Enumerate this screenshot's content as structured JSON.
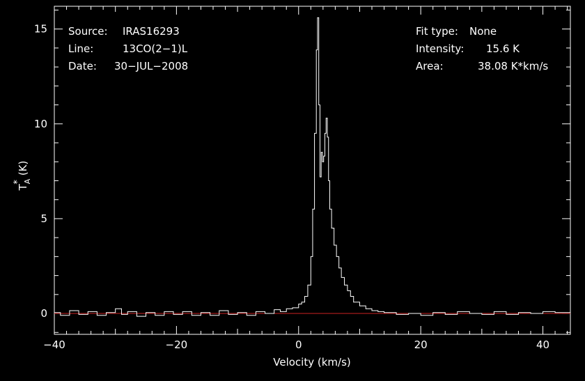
{
  "chart_data": {
    "type": "line",
    "xlabel": "Velocity (km/s)",
    "ylabel": {
      "main": "T",
      "superscript": "*",
      "subscript": "A",
      "unit": "(K)"
    },
    "xlim": [
      -40,
      44.5
    ],
    "ylim": [
      -1.1,
      16.2
    ],
    "xticks": [
      -40,
      -20,
      0,
      20,
      40
    ],
    "xtick_labels": [
      "−40",
      "−20",
      "0",
      "20",
      "40"
    ],
    "yticks": [
      0,
      5,
      10,
      15
    ],
    "ytick_labels": [
      "0",
      "5",
      "10",
      "15"
    ],
    "grid": false,
    "baseline": {
      "y": 0,
      "color": "#cc2222"
    },
    "colors": {
      "background": "#000000",
      "axes": "#ffffff",
      "spectrum": "#ffffff",
      "baseline": "#cc2222"
    },
    "series": [
      {
        "style": "step",
        "x": [
          -39,
          -37.5,
          -36,
          -34.5,
          -33,
          -31.5,
          -30,
          -29,
          -28,
          -26.5,
          -25,
          -23.5,
          -22,
          -20.5,
          -19,
          -17.5,
          -16,
          -14.5,
          -13,
          -11.5,
          -10,
          -8.5,
          -7,
          -5.5,
          -4,
          -3,
          -2,
          -1,
          0,
          0.5,
          1,
          1.5,
          2,
          2.3,
          2.6,
          2.9,
          3.1,
          3.3,
          3.5,
          3.7,
          3.9,
          4.1,
          4.3,
          4.5,
          4.7,
          4.9,
          5.1,
          5.4,
          5.8,
          6.2,
          6.6,
          7.0,
          7.5,
          8.0,
          8.5,
          9.0,
          10,
          11,
          12,
          13,
          14,
          16,
          18,
          20,
          22,
          24,
          26,
          28,
          30,
          32,
          34,
          36,
          38,
          40,
          42,
          44
        ],
        "y": [
          0.05,
          -0.1,
          0.15,
          -0.05,
          0.1,
          -0.1,
          0.05,
          0.25,
          -0.05,
          0.1,
          -0.15,
          0.05,
          -0.1,
          0.1,
          -0.05,
          0.1,
          -0.1,
          0.05,
          -0.1,
          0.15,
          -0.05,
          0.05,
          -0.1,
          0.1,
          0.0,
          0.2,
          0.1,
          0.25,
          0.3,
          0.5,
          0.6,
          0.9,
          1.5,
          3.0,
          5.5,
          9.5,
          13.9,
          15.6,
          11.0,
          7.2,
          8.5,
          8.0,
          8.3,
          9.5,
          10.3,
          9.3,
          7.0,
          5.5,
          4.5,
          3.6,
          3.0,
          2.4,
          1.9,
          1.5,
          1.2,
          0.9,
          0.6,
          0.4,
          0.25,
          0.15,
          0.1,
          0.05,
          -0.05,
          0.0,
          -0.1,
          0.05,
          -0.05,
          0.1,
          0.0,
          -0.05,
          0.1,
          -0.05,
          0.05,
          0.0,
          0.1,
          0.05
        ]
      }
    ]
  },
  "info": {
    "left": [
      {
        "key": "Source:",
        "value": "IRAS16293"
      },
      {
        "key": "Line:",
        "value": "13CO(2−1)L"
      },
      {
        "key": "Date:",
        "value": "30−JUL−2008"
      }
    ],
    "right": [
      {
        "key": "Fit type:",
        "value": "None"
      },
      {
        "key": "Intensity:",
        "value": "15.6 K"
      },
      {
        "key": "Area:",
        "value": "38.08 K*km/s"
      }
    ]
  }
}
